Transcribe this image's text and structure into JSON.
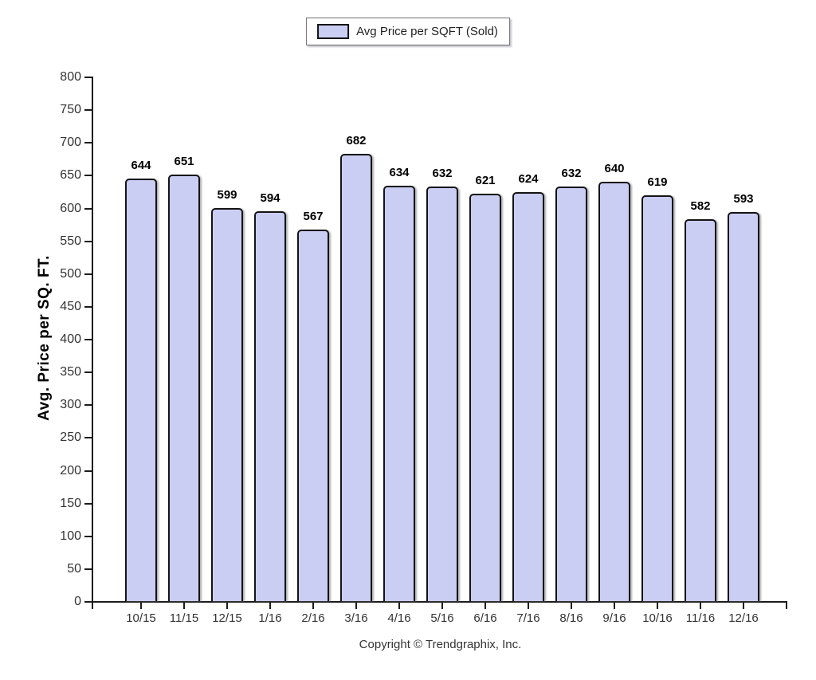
{
  "legend": {
    "label": "Avg Price per SQFT (Sold)"
  },
  "footer": {
    "copyright": "Copyright © Trendgraphix, Inc."
  },
  "colors": {
    "bar_fill": "#cbcef3",
    "bar_border": "#141414",
    "axis": "#1c1c1c",
    "tick_label": "#333333",
    "value_label": "#000000"
  },
  "chart_data": {
    "type": "bar",
    "title": "",
    "series_name": "Avg Price per SQFT (Sold)",
    "categories": [
      "10/15",
      "11/15",
      "12/15",
      "1/16",
      "2/16",
      "3/16",
      "4/16",
      "5/16",
      "6/16",
      "7/16",
      "8/16",
      "9/16",
      "10/16",
      "11/16",
      "12/16"
    ],
    "values": [
      644,
      651,
      599,
      594,
      567,
      682,
      634,
      632,
      621,
      624,
      632,
      640,
      619,
      582,
      593
    ],
    "xlabel": "",
    "ylabel": "Avg. Price per SQ. FT.",
    "ylim": [
      0,
      800
    ],
    "ytick_step": 50,
    "yticks": [
      "0",
      "50",
      "100",
      "150",
      "200",
      "250",
      "300",
      "350",
      "400",
      "450",
      "500",
      "550",
      "600",
      "650",
      "700",
      "750",
      "800"
    ],
    "grid": false,
    "legend_position": "top-center",
    "value_labels_shown": true
  }
}
